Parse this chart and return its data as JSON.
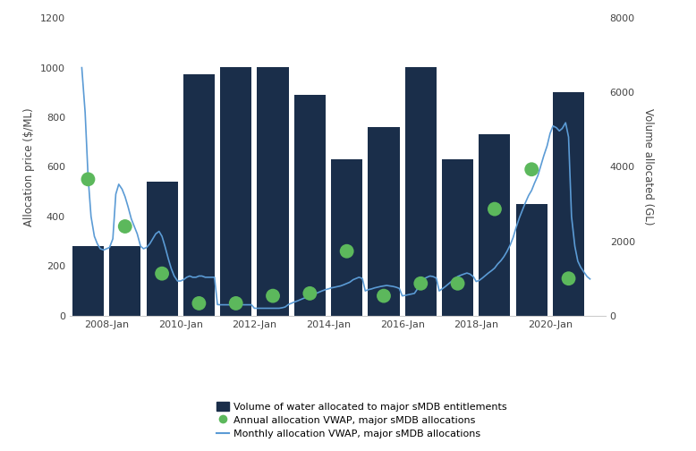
{
  "bar_years": [
    2007.5,
    2008.5,
    2009.5,
    2010.5,
    2011.5,
    2012.5,
    2013.5,
    2014.5,
    2015.5,
    2016.5,
    2017.5,
    2018.5,
    2019.5,
    2020.5
  ],
  "bar_values_GL": [
    1870,
    1870,
    3600,
    6500,
    6670,
    6670,
    5930,
    4200,
    5080,
    6670,
    4200,
    4870,
    3000,
    6000
  ],
  "annual_vwap_years": [
    2007.5,
    2008.5,
    2009.5,
    2010.5,
    2011.5,
    2012.5,
    2013.5,
    2014.5,
    2015.5,
    2016.5,
    2017.5,
    2018.5,
    2019.5,
    2020.5
  ],
  "annual_vwap_price": [
    550,
    360,
    170,
    50,
    50,
    80,
    90,
    260,
    80,
    130,
    130,
    430,
    590,
    150
  ],
  "monthly_times": [
    2007.33,
    2007.42,
    2007.5,
    2007.58,
    2007.67,
    2007.75,
    2007.83,
    2007.92,
    2008.0,
    2008.08,
    2008.17,
    2008.25,
    2008.33,
    2008.42,
    2008.5,
    2008.58,
    2008.67,
    2008.75,
    2008.83,
    2008.92,
    2009.0,
    2009.08,
    2009.17,
    2009.25,
    2009.33,
    2009.42,
    2009.5,
    2009.58,
    2009.67,
    2009.75,
    2009.83,
    2009.92,
    2010.0,
    2010.08,
    2010.17,
    2010.25,
    2010.33,
    2010.42,
    2010.5,
    2010.58,
    2010.67,
    2010.75,
    2010.83,
    2010.92,
    2011.0,
    2011.08,
    2011.17,
    2011.25,
    2011.33,
    2011.42,
    2011.5,
    2011.58,
    2011.67,
    2011.75,
    2011.83,
    2011.92,
    2012.0,
    2012.08,
    2012.17,
    2012.25,
    2012.33,
    2012.42,
    2012.5,
    2012.58,
    2012.67,
    2012.75,
    2012.83,
    2012.92,
    2013.0,
    2013.08,
    2013.17,
    2013.25,
    2013.33,
    2013.42,
    2013.5,
    2013.58,
    2013.67,
    2013.75,
    2013.83,
    2013.92,
    2014.0,
    2014.08,
    2014.17,
    2014.25,
    2014.33,
    2014.42,
    2014.5,
    2014.58,
    2014.67,
    2014.75,
    2014.83,
    2014.92,
    2015.0,
    2015.08,
    2015.17,
    2015.25,
    2015.33,
    2015.42,
    2015.5,
    2015.58,
    2015.67,
    2015.75,
    2015.83,
    2015.92,
    2016.0,
    2016.08,
    2016.17,
    2016.25,
    2016.33,
    2016.42,
    2016.5,
    2016.58,
    2016.67,
    2016.75,
    2016.83,
    2016.92,
    2017.0,
    2017.08,
    2017.17,
    2017.25,
    2017.33,
    2017.42,
    2017.5,
    2017.58,
    2017.67,
    2017.75,
    2017.83,
    2017.92,
    2018.0,
    2018.08,
    2018.17,
    2018.25,
    2018.33,
    2018.42,
    2018.5,
    2018.58,
    2018.67,
    2018.75,
    2018.83,
    2018.92,
    2019.0,
    2019.08,
    2019.17,
    2019.25,
    2019.33,
    2019.42,
    2019.5,
    2019.58,
    2019.67,
    2019.75,
    2019.83,
    2019.92,
    2020.0,
    2020.08,
    2020.17,
    2020.25,
    2020.33,
    2020.42,
    2020.5,
    2020.58,
    2020.67,
    2020.75,
    2020.83,
    2020.92,
    2021.0,
    2021.08
  ],
  "monthly_vwap_price": [
    1000,
    820,
    560,
    400,
    320,
    290,
    270,
    265,
    270,
    275,
    310,
    490,
    530,
    510,
    480,
    440,
    390,
    360,
    330,
    280,
    270,
    275,
    290,
    310,
    330,
    340,
    320,
    280,
    230,
    190,
    160,
    140,
    140,
    145,
    155,
    160,
    155,
    155,
    160,
    160,
    155,
    155,
    155,
    155,
    45,
    44,
    44,
    44,
    44,
    44,
    44,
    44,
    44,
    44,
    44,
    44,
    30,
    30,
    30,
    30,
    30,
    30,
    30,
    30,
    30,
    32,
    35,
    45,
    50,
    55,
    60,
    65,
    70,
    75,
    80,
    85,
    90,
    95,
    100,
    105,
    108,
    112,
    115,
    118,
    120,
    125,
    130,
    135,
    145,
    150,
    155,
    150,
    100,
    105,
    108,
    112,
    115,
    118,
    120,
    122,
    120,
    118,
    115,
    110,
    80,
    82,
    85,
    88,
    90,
    110,
    130,
    148,
    155,
    160,
    158,
    152,
    100,
    108,
    118,
    128,
    138,
    148,
    158,
    163,
    168,
    172,
    168,
    158,
    138,
    142,
    152,
    162,
    172,
    182,
    192,
    208,
    222,
    238,
    258,
    285,
    315,
    355,
    395,
    425,
    455,
    485,
    505,
    535,
    565,
    605,
    645,
    685,
    735,
    765,
    758,
    745,
    755,
    778,
    720,
    400,
    280,
    220,
    195,
    175,
    158,
    148
  ],
  "bar_color": "#1a2e4a",
  "line_color": "#5b9bd5",
  "dot_color": "#5cb85c",
  "left_ylim": [
    0,
    1200
  ],
  "right_ylim": [
    0,
    8000
  ],
  "left_yticks": [
    0,
    200,
    400,
    600,
    800,
    1000,
    1200
  ],
  "right_yticks": [
    0,
    2000,
    4000,
    6000,
    8000
  ],
  "ylabel_left": "Allocation price ($/ML)",
  "ylabel_right": "Volume allocated (GL)",
  "xtick_labels": [
    "2008-Jan",
    "2010-Jan",
    "2012-Jan",
    "2014-Jan",
    "2016-Jan",
    "2018-Jan",
    "2020-Jan"
  ],
  "xtick_positions": [
    2008.0,
    2010.0,
    2012.0,
    2014.0,
    2016.0,
    2018.0,
    2020.0
  ],
  "legend_labels": [
    "Volume of water allocated to major sMDB entitlements",
    "Annual allocation VWAP, major sMDB allocations",
    "Monthly allocation VWAP, major sMDB allocations"
  ],
  "background_color": "#ffffff",
  "bar_width": 0.85,
  "xlim": [
    2007.0,
    2021.5
  ]
}
